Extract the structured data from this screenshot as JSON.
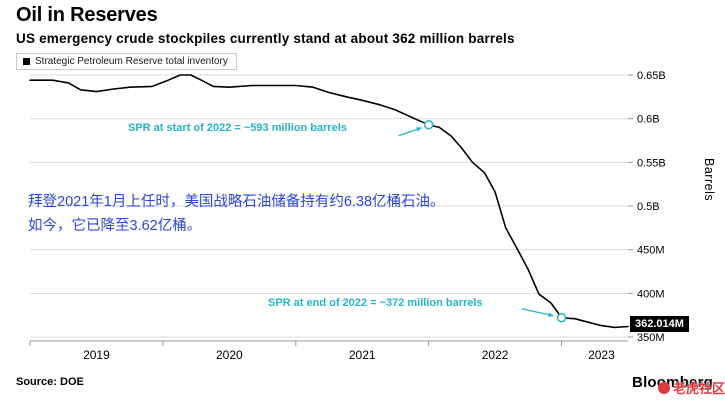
{
  "header": {
    "title": "Oil in Reserves",
    "subtitle": "US emergency crude stockpiles currently stand at about 362 million barrels"
  },
  "legend": {
    "label": "Strategic Petroleum Reserve total inventory"
  },
  "annotations": {
    "start_2022": "SPR at start of 2022 = ~593 million barrels",
    "end_2022": "SPR at end of 2022 = ~372 million barrels",
    "chinese_line1": "拜登2021年1月上任时，美国战略石油储备持有约6.38亿桶石油。",
    "chinese_line2": "如今，它已降至3.62亿桶。",
    "last_value_label": "362.014M"
  },
  "axes": {
    "y_title": "Barrels"
  },
  "footer": {
    "source": "Source: DOE",
    "brand": "Bloomberg",
    "watermark": "老虎社区"
  },
  "colors": {
    "accent_cyan": "#27b3c9",
    "annotation_blue": "#2b46d9",
    "watermark_red": "#e23b3b",
    "line": "#000000",
    "grid": "#dcdcdc",
    "axis": "#999999"
  },
  "chart_data": {
    "type": "line",
    "title": "Oil in Reserves",
    "subtitle": "US emergency crude stockpiles currently stand at about 362 million barrels",
    "units": "million barrels",
    "ylabel": "Barrels",
    "x_domain": [
      2019.0,
      2023.5
    ],
    "y_domain": [
      350,
      650
    ],
    "grid": "horizontal",
    "legend_position": "top-left",
    "last_value": 362.014,
    "y_ticks": [
      {
        "value": 650,
        "label": "0.65B"
      },
      {
        "value": 600,
        "label": "0.6B"
      },
      {
        "value": 550,
        "label": "0.55B"
      },
      {
        "value": 500,
        "label": "0.5B"
      },
      {
        "value": 450,
        "label": "450M"
      },
      {
        "value": 400,
        "label": "400M"
      },
      {
        "value": 350,
        "label": "350M"
      }
    ],
    "x_ticks": [
      {
        "label": "2019",
        "tick": 2019,
        "labelAt": 2019.5
      },
      {
        "label": "2020",
        "tick": 2020,
        "labelAt": 2020.5
      },
      {
        "label": "2021",
        "tick": 2021,
        "labelAt": 2021.5
      },
      {
        "label": "2022",
        "tick": 2022,
        "labelAt": 2022.5
      },
      {
        "label": "2023",
        "tick": 2023,
        "labelAt": 2023.3
      }
    ],
    "markers": [
      {
        "x": 2022.0,
        "y": 593,
        "note": "SPR at start of 2022 = ~593 million barrels"
      },
      {
        "x": 2023.0,
        "y": 372,
        "note": "SPR at end of 2022 = ~372 million barrels"
      }
    ],
    "series": [
      {
        "name": "Strategic Petroleum Reserve total inventory",
        "points": [
          [
            2019.0,
            644
          ],
          [
            2019.17,
            644
          ],
          [
            2019.29,
            641
          ],
          [
            2019.38,
            633
          ],
          [
            2019.5,
            631
          ],
          [
            2019.63,
            634
          ],
          [
            2019.75,
            636
          ],
          [
            2019.92,
            637
          ],
          [
            2020.04,
            644
          ],
          [
            2020.13,
            650
          ],
          [
            2020.21,
            650
          ],
          [
            2020.29,
            644
          ],
          [
            2020.38,
            637
          ],
          [
            2020.5,
            636
          ],
          [
            2020.67,
            638
          ],
          [
            2020.83,
            638
          ],
          [
            2021.0,
            638
          ],
          [
            2021.13,
            636
          ],
          [
            2021.25,
            630
          ],
          [
            2021.38,
            625
          ],
          [
            2021.5,
            621
          ],
          [
            2021.63,
            616
          ],
          [
            2021.75,
            610
          ],
          [
            2021.88,
            601
          ],
          [
            2022.0,
            593
          ],
          [
            2022.08,
            590
          ],
          [
            2022.17,
            580
          ],
          [
            2022.25,
            566
          ],
          [
            2022.33,
            550
          ],
          [
            2022.42,
            538
          ],
          [
            2022.5,
            516
          ],
          [
            2022.58,
            475
          ],
          [
            2022.67,
            450
          ],
          [
            2022.75,
            427
          ],
          [
            2022.83,
            399
          ],
          [
            2022.92,
            389
          ],
          [
            2023.0,
            372
          ],
          [
            2023.1,
            371
          ],
          [
            2023.2,
            367
          ],
          [
            2023.3,
            363
          ],
          [
            2023.4,
            361
          ],
          [
            2023.5,
            362
          ]
        ]
      }
    ]
  }
}
